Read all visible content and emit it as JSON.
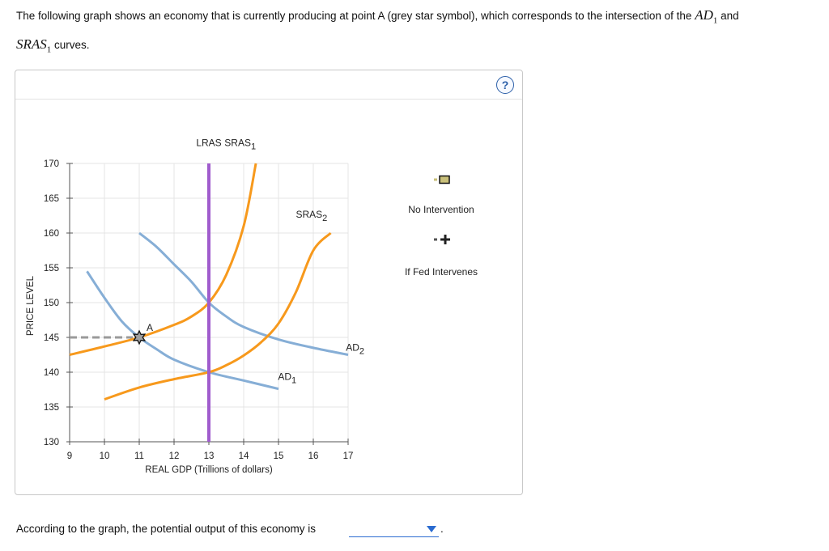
{
  "intro": {
    "part1": "The following graph shows an economy that is currently producing at point A (grey star symbol), which corresponds to the intersection of the ",
    "ad_base": "AD",
    "ad_sub": "1",
    "and": " and",
    "sras_base": "SRAS",
    "sras_sub": "1",
    "part2": " curves."
  },
  "help": {
    "label": "?"
  },
  "question": {
    "text": "According to the graph, the potential output of this economy is",
    "selected": "",
    "period": "."
  },
  "colors": {
    "sras": "#f7991c",
    "ad": "#86aed6",
    "lras": "#a05ccd",
    "dash": "#9a9a9a",
    "star": "#a0a0a0",
    "grid": "#e4e4e4",
    "legend_no_intervention": "#c9c07a",
    "legend_fed": "#222222"
  },
  "chart_data": {
    "type": "line",
    "xlabel": "REAL GDP (Trillions of dollars)",
    "ylabel": "PRICE LEVEL",
    "xlim": [
      9,
      17
    ],
    "ylim": [
      130,
      170
    ],
    "xticks": [
      9,
      10,
      11,
      12,
      13,
      14,
      15,
      16,
      17
    ],
    "yticks": [
      130,
      135,
      140,
      145,
      150,
      155,
      160,
      165,
      170
    ],
    "grid": true,
    "series": [
      {
        "name": "SRAS",
        "sub": "1",
        "kind": "sras",
        "points": [
          [
            9,
            142.5
          ],
          [
            10,
            143.7
          ],
          [
            11,
            145
          ],
          [
            12,
            146.8
          ],
          [
            12.5,
            148
          ],
          [
            13,
            150
          ],
          [
            13.5,
            154
          ],
          [
            14,
            161
          ],
          [
            14.35,
            170
          ]
        ],
        "label_at": [
          13.9,
          172.5
        ]
      },
      {
        "name": "SRAS",
        "sub": "2",
        "kind": "sras",
        "points": [
          [
            10,
            136.1
          ],
          [
            11,
            137.8
          ],
          [
            12,
            139
          ],
          [
            13,
            140
          ],
          [
            13.5,
            141
          ],
          [
            14,
            142.4
          ],
          [
            14.5,
            144.3
          ],
          [
            15,
            147
          ],
          [
            15.5,
            151.5
          ],
          [
            16,
            157.5
          ],
          [
            16.5,
            160
          ]
        ],
        "label_at": [
          15.95,
          162.2
        ]
      },
      {
        "name": "AD",
        "sub": "1",
        "kind": "ad",
        "points": [
          [
            9.5,
            154.5
          ],
          [
            10,
            150.7
          ],
          [
            10.5,
            147.3
          ],
          [
            11,
            145
          ],
          [
            11.5,
            143.3
          ],
          [
            12,
            141.8
          ],
          [
            13,
            140
          ],
          [
            14,
            138.8
          ],
          [
            15,
            137.6
          ]
        ],
        "label_at": [
          15.25,
          138.9
        ]
      },
      {
        "name": "AD",
        "sub": "2",
        "kind": "ad",
        "points": [
          [
            11,
            160
          ],
          [
            11.5,
            158
          ],
          [
            12,
            155.5
          ],
          [
            12.5,
            153
          ],
          [
            13,
            150
          ],
          [
            13.5,
            148
          ],
          [
            14,
            146.5
          ],
          [
            15,
            144.7
          ],
          [
            16,
            143.5
          ],
          [
            17,
            142.5
          ]
        ],
        "label_at": [
          17.2,
          143.1
        ]
      },
      {
        "name": "LRAS",
        "sub": "",
        "kind": "lras",
        "points": [
          [
            13,
            130
          ],
          [
            13,
            170
          ]
        ],
        "label_at": [
          13,
          172.5
        ]
      }
    ],
    "annotations": [
      {
        "type": "point",
        "label": "A",
        "x": 11,
        "y": 145
      },
      {
        "type": "dashed-guide",
        "from": [
          9,
          145
        ],
        "to": [
          11,
          145
        ]
      }
    ],
    "legend": {
      "placement": "right",
      "entries": [
        {
          "label": "No Intervention",
          "marker": "square"
        },
        {
          "label": "If Fed Intervenes",
          "marker": "cross"
        }
      ]
    }
  }
}
